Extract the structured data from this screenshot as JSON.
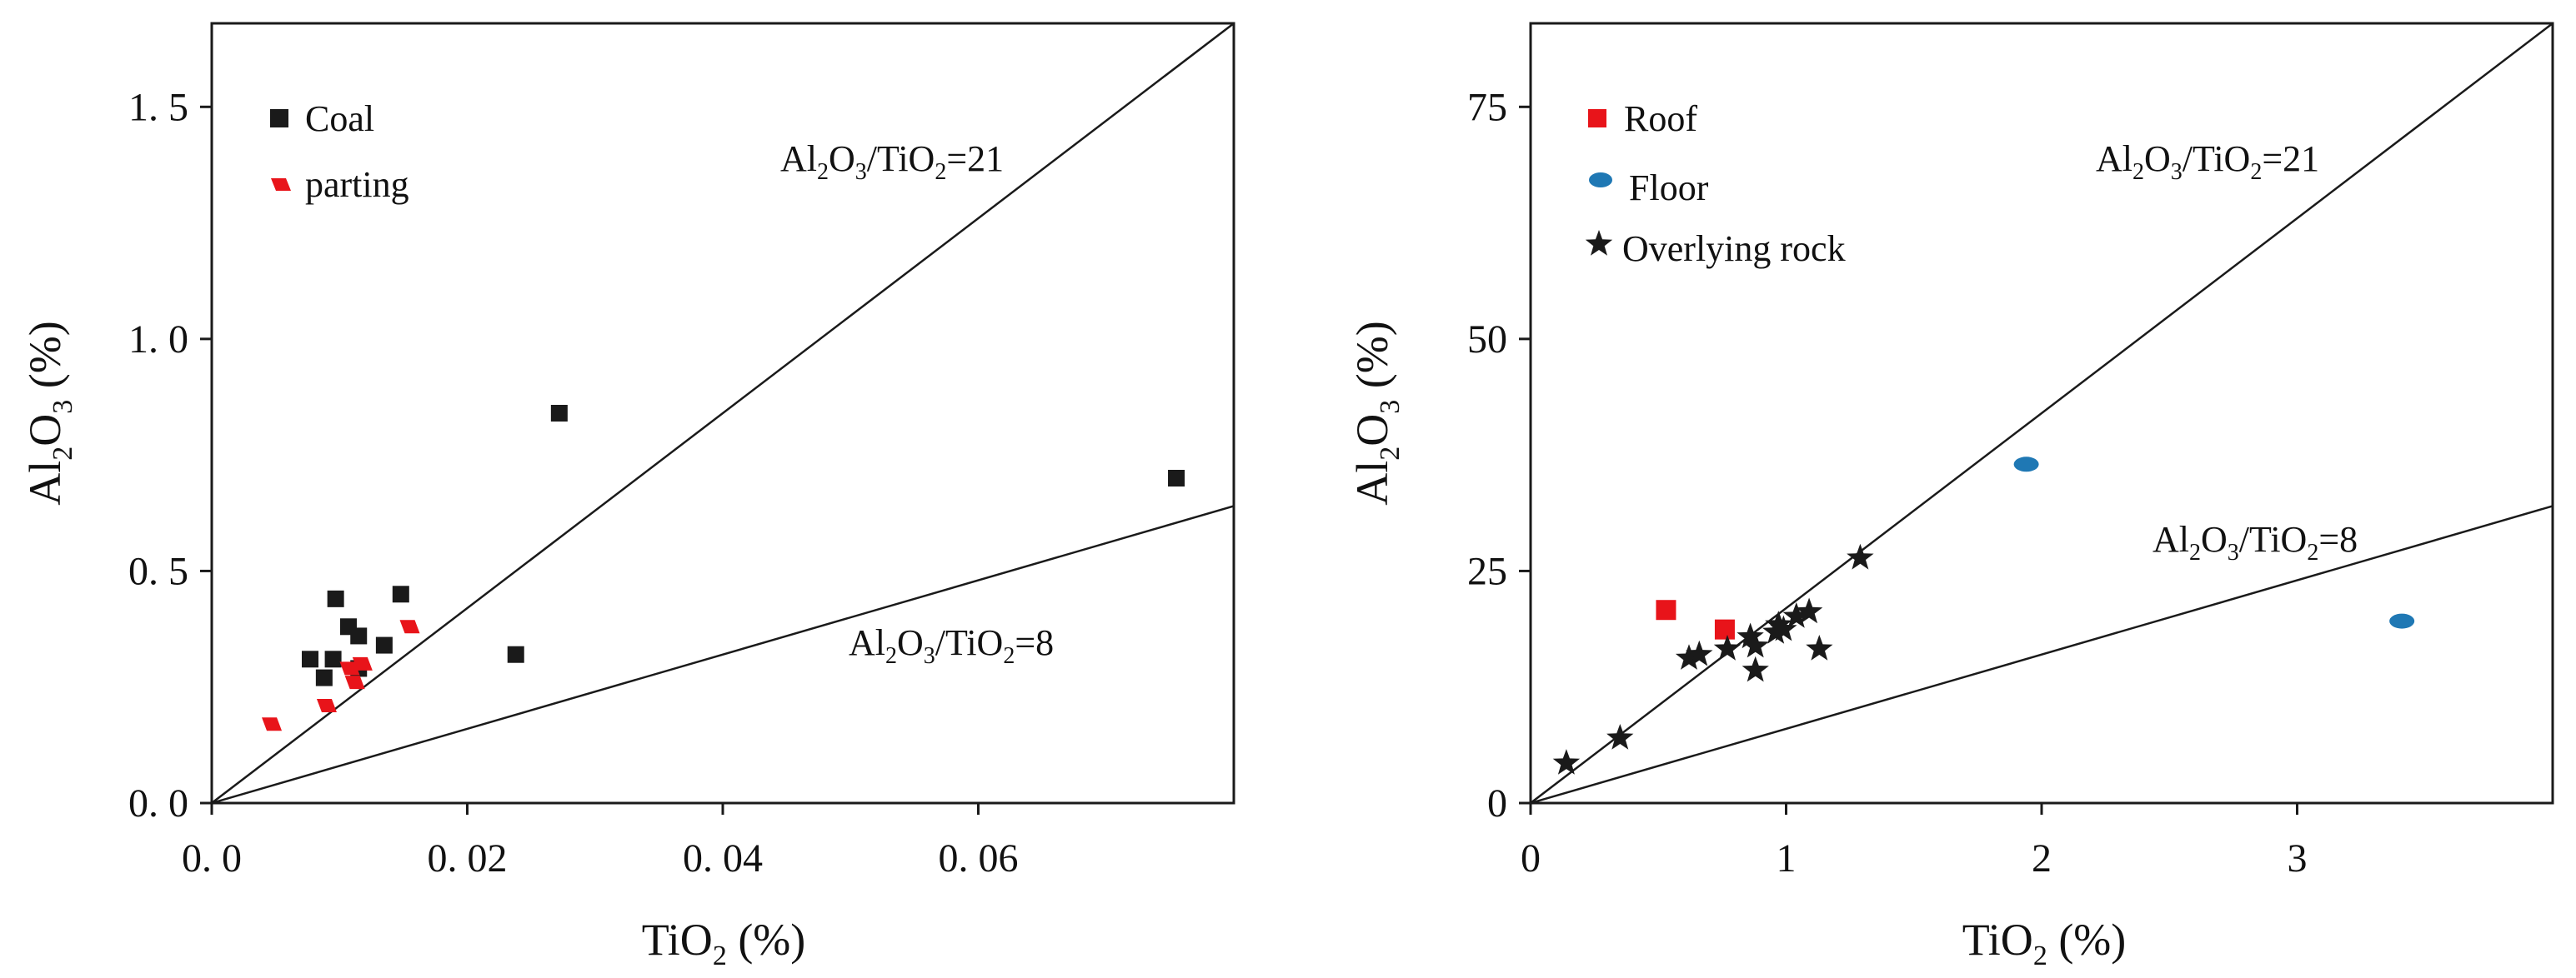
{
  "chart_data": [
    {
      "type": "scatter",
      "xlabel": "TiO",
      "xlabel_sub": "2",
      "xlabel_unit": " (%)",
      "ylabel": "Al",
      "ylabel_sub1": "2",
      "ylabel_mid": "O",
      "ylabel_sub2": "3",
      "ylabel_unit": " (%)",
      "xlim": [
        0,
        0.08
      ],
      "ylim": [
        0,
        1.68
      ],
      "xticks": [
        0.0,
        0.02,
        0.04,
        0.06
      ],
      "xtick_labels": [
        "0. 0",
        "0. 02",
        "0. 04",
        "0. 06"
      ],
      "yticks": [
        0.0,
        0.5,
        1.0,
        1.5
      ],
      "ytick_labels": [
        "0. 0",
        "0. 5",
        "1. 0",
        "1. 5"
      ],
      "reference_lines": [
        {
          "ratio": 21,
          "label": {
            "a": "Al",
            "b": "2",
            "c": "O",
            "d": "3",
            "e": "/TiO",
            "f": "2",
            "g": "=21"
          }
        },
        {
          "ratio": 8,
          "label": {
            "a": "Al",
            "b": "2",
            "c": "O",
            "d": "3",
            "e": "/TiO",
            "f": "2",
            "g": "=8"
          }
        }
      ],
      "series": [
        {
          "name": "Coal",
          "marker": "square",
          "color": "#1a1a1a",
          "points": [
            [
              0.0272,
              0.84
            ],
            [
              0.0755,
              0.7
            ],
            [
              0.0238,
              0.32
            ],
            [
              0.0148,
              0.45
            ],
            [
              0.0097,
              0.44
            ],
            [
              0.0107,
              0.38
            ],
            [
              0.0115,
              0.36
            ],
            [
              0.0135,
              0.34
            ],
            [
              0.0077,
              0.31
            ],
            [
              0.0095,
              0.31
            ],
            [
              0.0088,
              0.27
            ],
            [
              0.0115,
              0.29
            ]
          ]
        },
        {
          "name": "parting",
          "marker": "parallelogram",
          "color": "#e8141a",
          "points": [
            [
              0.0047,
              0.17
            ],
            [
              0.009,
              0.21
            ],
            [
              0.0112,
              0.26
            ],
            [
              0.0108,
              0.29
            ],
            [
              0.0155,
              0.38
            ],
            [
              0.0118,
              0.3
            ]
          ]
        }
      ]
    },
    {
      "type": "scatter",
      "xlabel": "TiO",
      "xlabel_sub": "2",
      "xlabel_unit": " (%)",
      "ylabel": "Al",
      "ylabel_sub1": "2",
      "ylabel_mid": "O",
      "ylabel_sub2": "3",
      "ylabel_unit": " (%)",
      "xlim": [
        0,
        4
      ],
      "ylim": [
        0,
        84
      ],
      "xticks": [
        0,
        1,
        2,
        3
      ],
      "xtick_labels": [
        "0",
        "1",
        "2",
        "3"
      ],
      "yticks": [
        0,
        25,
        50,
        75
      ],
      "ytick_labels": [
        "0",
        "25",
        "50",
        "75"
      ],
      "reference_lines": [
        {
          "ratio": 21,
          "label": {
            "a": "Al",
            "b": "2",
            "c": "O",
            "d": "3",
            "e": "/TiO",
            "f": "2",
            "g": "=21"
          }
        },
        {
          "ratio": 8,
          "label": {
            "a": "Al",
            "b": "2",
            "c": "O",
            "d": "3",
            "e": "/TiO",
            "f": "2",
            "g": "=8"
          }
        }
      ],
      "series": [
        {
          "name": "Roof",
          "marker": "square",
          "color": "#e8141a",
          "points": [
            [
              0.53,
              20.8
            ],
            [
              0.76,
              18.7
            ]
          ]
        },
        {
          "name": "Floor",
          "marker": "ellipse",
          "color": "#1f78b4",
          "points": [
            [
              1.94,
              36.5
            ],
            [
              3.41,
              19.6
            ]
          ]
        },
        {
          "name": "Overlying rock",
          "marker": "star",
          "color": "#1a1a1a",
          "points": [
            [
              0.14,
              4.3
            ],
            [
              0.35,
              7.0
            ],
            [
              0.62,
              15.6
            ],
            [
              0.66,
              16.0
            ],
            [
              0.77,
              16.6
            ],
            [
              0.86,
              17.9
            ],
            [
              0.88,
              16.9
            ],
            [
              0.88,
              14.3
            ],
            [
              0.96,
              18.4
            ],
            [
              0.97,
              19.2
            ],
            [
              0.99,
              18.7
            ],
            [
              1.04,
              20.1
            ],
            [
              1.09,
              20.6
            ],
            [
              1.13,
              16.6
            ],
            [
              1.29,
              26.4
            ]
          ]
        }
      ]
    }
  ]
}
